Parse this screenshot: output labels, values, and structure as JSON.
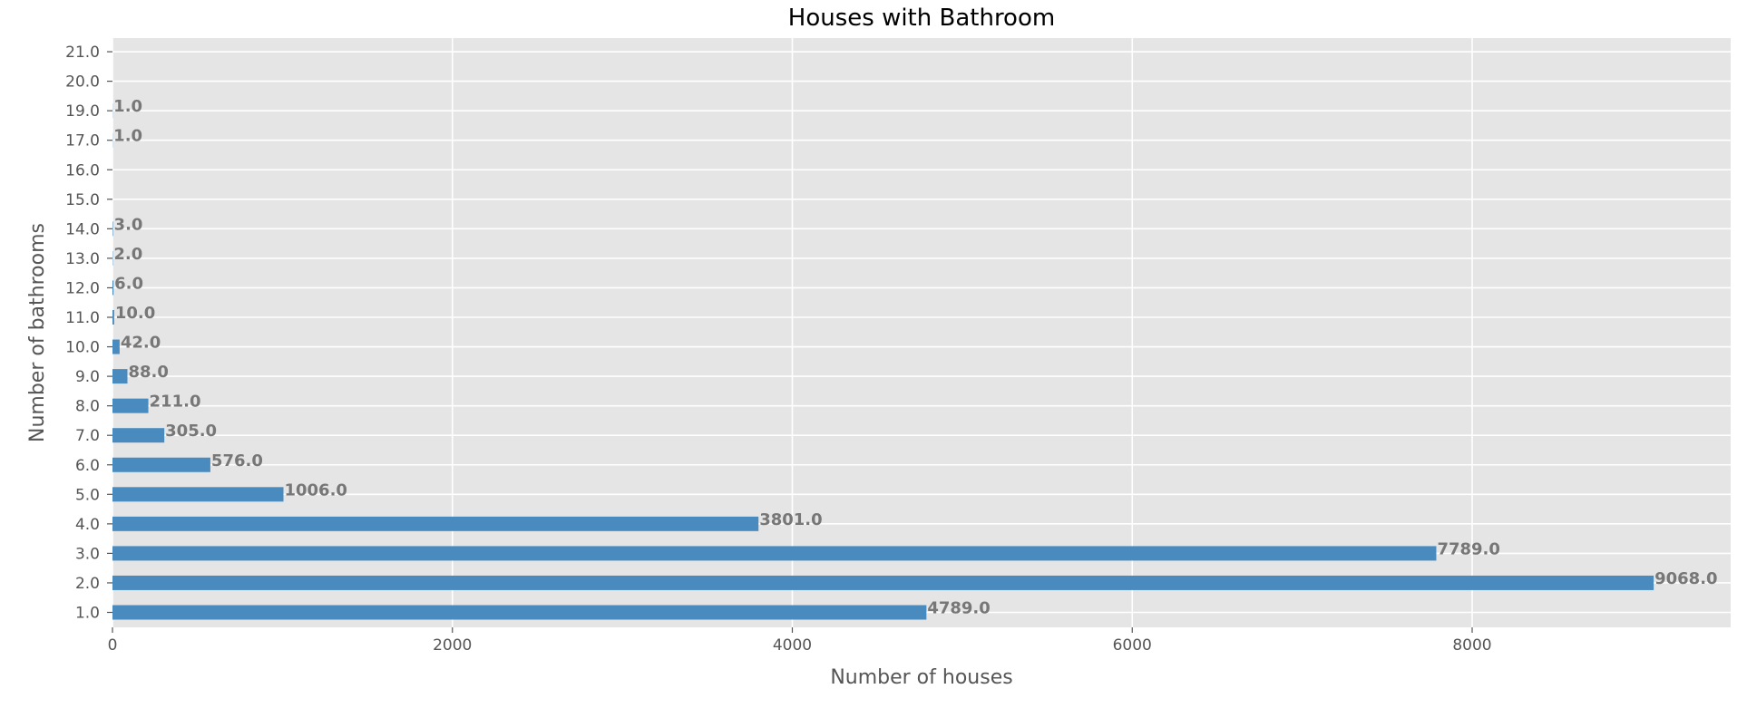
{
  "chart_data": {
    "type": "bar",
    "orientation": "horizontal",
    "title": "Houses with Bathroom",
    "xlabel": "Number of houses",
    "ylabel": "Number of bathrooms",
    "categories": [
      "1.0",
      "2.0",
      "3.0",
      "4.0",
      "5.0",
      "6.0",
      "7.0",
      "8.0",
      "9.0",
      "10.0",
      "11.0",
      "12.0",
      "13.0",
      "14.0",
      "15.0",
      "16.0",
      "17.0",
      "19.0",
      "20.0",
      "21.0"
    ],
    "values": [
      4789,
      9068,
      7789,
      3801,
      1006,
      576,
      305,
      211,
      88,
      42,
      10,
      6,
      2,
      3,
      0,
      0,
      1,
      1,
      0,
      0
    ],
    "data_labels": [
      "4789.0",
      "9068.0",
      "7789.0",
      "3801.0",
      "1006.0",
      "576.0",
      "305.0",
      "211.0",
      "88.0",
      "42.0",
      "10.0",
      "6.0",
      "2.0",
      "3.0",
      "",
      "",
      "1.0",
      "1.0",
      "",
      ""
    ],
    "xlim": [
      0,
      9521
    ],
    "xticks": [
      0,
      2000,
      4000,
      6000,
      8000
    ],
    "xtick_labels": [
      "0",
      "2000",
      "4000",
      "6000",
      "8000"
    ],
    "grid": true,
    "bar_color": "#4a8bbf",
    "plot_background": "#e5e5e5",
    "grid_color": "#ffffff"
  }
}
